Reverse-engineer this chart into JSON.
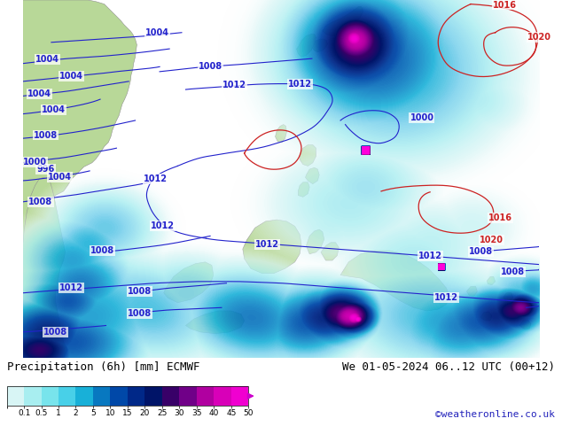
{
  "title_left": "Precipitation (6h) [mm] ECMWF",
  "title_right": "We 01-05-2024 06..12 UTC (00+12)",
  "credit": "©weatheronline.co.uk",
  "colorbar_levels": [
    0.1,
    0.5,
    1,
    2,
    5,
    10,
    15,
    20,
    25,
    30,
    35,
    40,
    45,
    50
  ],
  "colorbar_colors": [
    "#d8f5f5",
    "#a8eef0",
    "#78e4ec",
    "#48d0e8",
    "#18b0d8",
    "#0878c0",
    "#0048a8",
    "#002888",
    "#001468",
    "#380068",
    "#700088",
    "#b000a0",
    "#d800b8",
    "#f000d0"
  ],
  "bg_color": "#ffffff",
  "ocean_color": "#d8eef8",
  "land_color_main": "#b8d898",
  "land_color_sea": "#c8e4c0",
  "border_color": "#909090",
  "contour_blue": "#2222cc",
  "contour_red": "#cc2222",
  "label_fs": 8,
  "credit_fs": 8,
  "title_fs": 9
}
